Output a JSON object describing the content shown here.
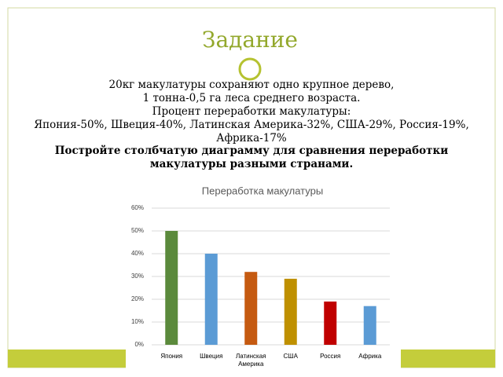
{
  "slide": {
    "title": "Задание",
    "lines": [
      "20кг макулатуры сохраняют одно крупное дерево,",
      "1 тонна-0,5 га леса среднего возраста.",
      "Процент переработки макулатуры:",
      "Япония-50%, Швеция-40%, Латинская Америка-32%, США-29%, Россия-19%, Африка-17%"
    ],
    "task": "Постройте столбчатую диаграмму для сравнения переработки макулатуры разными странами."
  },
  "chart_data": {
    "type": "bar",
    "title": "Переработка макулатуры",
    "categories": [
      "Япония",
      "Швеция",
      "Латинская Америка",
      "США",
      "Россия",
      "Африка"
    ],
    "values": [
      50,
      40,
      32,
      29,
      19,
      17
    ],
    "colors": [
      "#5b8a3c",
      "#5b9bd5",
      "#c55a11",
      "#bf9000",
      "#c00000",
      "#5b9bd5"
    ],
    "ylim": [
      0,
      60
    ],
    "yticks": [
      {
        "value": 0,
        "label": "0%"
      },
      {
        "value": 10,
        "label": "10%"
      },
      {
        "value": 20,
        "label": "20%"
      },
      {
        "value": 30,
        "label": "30%"
      },
      {
        "value": 40,
        "label": "40%"
      },
      {
        "value": 50,
        "label": "50%"
      },
      {
        "value": 60,
        "label": "60%"
      }
    ],
    "grid": true
  }
}
